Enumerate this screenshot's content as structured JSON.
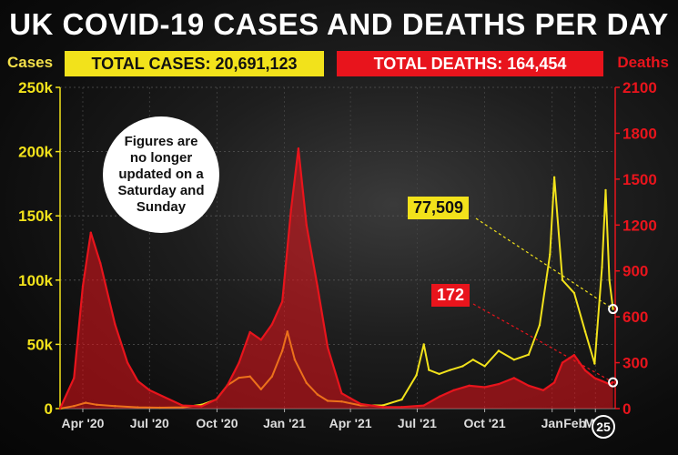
{
  "header": {
    "title": "UK COVID-19 CASES AND DEATHS PER DAY",
    "total_cases": "TOTAL CASES: 20,691,123",
    "total_deaths": "TOTAL DEATHS: 164,454",
    "left_unit": "Cases",
    "right_unit": "Deaths"
  },
  "annotations": {
    "note": "Figures are no longer updated on a Saturday and Sunday",
    "latest_cases": "77,509",
    "latest_deaths": "172",
    "date_badge": "25"
  },
  "colors": {
    "cases": "#f2e21b",
    "deaths": "#e8141c",
    "background": "#0b0b0b"
  },
  "chart_data": {
    "type": "line",
    "title": "UK COVID-19 CASES AND DEATHS PER DAY",
    "x_tick_labels": [
      "Apr '20",
      "Jul '20",
      "Oct '20",
      "Jan '21",
      "Apr '21",
      "Jul '21",
      "Oct '21",
      "Jan",
      "Feb",
      "Mar"
    ],
    "y_left": {
      "label": "Cases",
      "lim": [
        0,
        250000
      ],
      "ticks": [
        0,
        50000,
        100000,
        150000,
        200000,
        250000
      ],
      "tick_labels": [
        "0",
        "50k",
        "100k",
        "150k",
        "200k",
        "250k"
      ]
    },
    "y_right": {
      "label": "Deaths",
      "lim": [
        0,
        2100
      ],
      "ticks": [
        0,
        300,
        600,
        900,
        1200,
        1500,
        1800,
        2100
      ],
      "tick_labels": [
        "0",
        "300",
        "600",
        "900",
        "1200",
        "1500",
        "1800",
        "2100"
      ]
    },
    "grid": true,
    "series": [
      {
        "name": "Cases",
        "axis": "left",
        "x": [
          "2020-03-01",
          "2020-03-20",
          "2020-04-05",
          "2020-04-20",
          "2020-05-15",
          "2020-06-15",
          "2020-07-15",
          "2020-08-15",
          "2020-09-10",
          "2020-09-30",
          "2020-10-15",
          "2020-10-31",
          "2020-11-15",
          "2020-11-30",
          "2020-12-15",
          "2020-12-29",
          "2021-01-05",
          "2021-01-15",
          "2021-01-31",
          "2021-02-15",
          "2021-03-01",
          "2021-03-20",
          "2021-04-15",
          "2021-05-15",
          "2021-06-10",
          "2021-06-30",
          "2021-07-10",
          "2021-07-17",
          "2021-07-31",
          "2021-08-15",
          "2021-09-01",
          "2021-09-15",
          "2021-10-01",
          "2021-10-20",
          "2021-11-10",
          "2021-11-30",
          "2021-12-15",
          "2021-12-29",
          "2022-01-04",
          "2022-01-15",
          "2022-01-31",
          "2022-02-15",
          "2022-02-28",
          "2022-03-10",
          "2022-03-15",
          "2022-03-20",
          "2022-03-25"
        ],
        "values": [
          0,
          2000,
          4500,
          3000,
          2000,
          1000,
          700,
          1000,
          3000,
          7000,
          18000,
          24000,
          25000,
          15000,
          25000,
          45000,
          60000,
          38000,
          20000,
          11000,
          6000,
          5500,
          2500,
          2500,
          7000,
          26000,
          50000,
          30000,
          27000,
          30000,
          33000,
          38000,
          33000,
          45000,
          38000,
          42000,
          65000,
          120000,
          180000,
          100000,
          90000,
          60000,
          35000,
          110000,
          170000,
          100000,
          77509
        ]
      },
      {
        "name": "Deaths",
        "axis": "right",
        "x": [
          "2020-03-01",
          "2020-03-20",
          "2020-04-01",
          "2020-04-12",
          "2020-04-25",
          "2020-05-15",
          "2020-06-01",
          "2020-06-15",
          "2020-07-01",
          "2020-08-15",
          "2020-09-10",
          "2020-09-30",
          "2020-10-15",
          "2020-10-31",
          "2020-11-15",
          "2020-11-30",
          "2020-12-15",
          "2020-12-29",
          "2021-01-10",
          "2021-01-20",
          "2021-01-31",
          "2021-02-15",
          "2021-03-01",
          "2021-03-20",
          "2021-04-15",
          "2021-05-15",
          "2021-06-10",
          "2021-07-10",
          "2021-08-01",
          "2021-08-20",
          "2021-09-10",
          "2021-10-01",
          "2021-10-20",
          "2021-11-10",
          "2021-11-30",
          "2021-12-20",
          "2022-01-04",
          "2022-01-15",
          "2022-01-31",
          "2022-02-15",
          "2022-02-28",
          "2022-03-10",
          "2022-03-20",
          "2022-03-25"
        ],
        "values": [
          0,
          200,
          800,
          1150,
          950,
          550,
          300,
          180,
          120,
          20,
          15,
          60,
          150,
          300,
          500,
          450,
          550,
          700,
          1300,
          1700,
          1200,
          800,
          400,
          100,
          30,
          10,
          10,
          20,
          80,
          120,
          150,
          140,
          160,
          200,
          150,
          120,
          170,
          300,
          350,
          250,
          200,
          180,
          160,
          172
        ]
      }
    ]
  }
}
